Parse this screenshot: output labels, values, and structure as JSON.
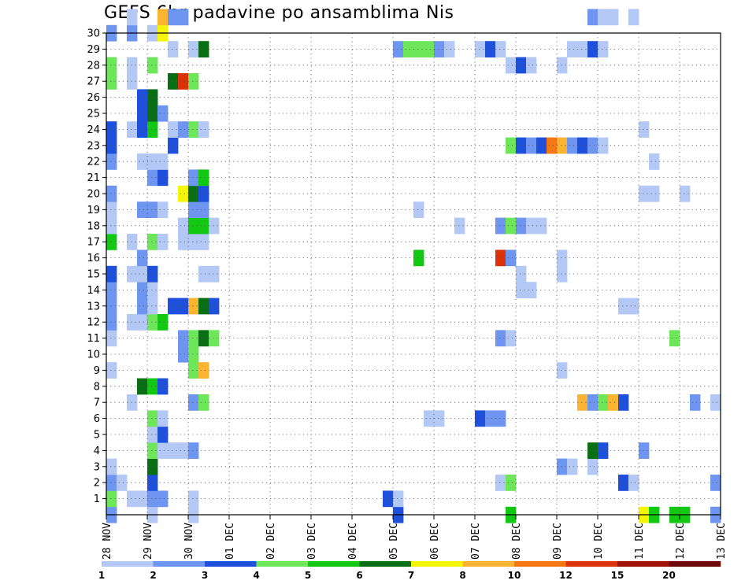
{
  "chart_data": {
    "type": "heatmap",
    "title": "GEFS 6hr padavine po ansamblima Nis",
    "xlabel": "",
    "ylabel": "",
    "x_tick_labels": [
      "28 NOV",
      "29 NOV",
      "30 NOV",
      "01 DEC",
      "02 DEC",
      "03 DEC",
      "04 DEC",
      "05 DEC",
      "06 DEC",
      "07 DEC",
      "08 DEC",
      "09 DEC",
      "10 DEC",
      "11 DEC",
      "12 DEC",
      "13 DEC"
    ],
    "x_steps_per_day": 4,
    "x_range_steps": [
      0,
      60
    ],
    "y_range_members": [
      0,
      30
    ],
    "y_tick_labels": [
      "1",
      "2",
      "3",
      "4",
      "5",
      "6",
      "7",
      "8",
      "9",
      "10",
      "11",
      "12",
      "13",
      "14",
      "15",
      "16",
      "17",
      "18",
      "19",
      "20",
      "21",
      "22",
      "23",
      "24",
      "25",
      "26",
      "27",
      "28",
      "29",
      "30"
    ],
    "grid": true,
    "color_scale": {
      "colors": [
        "#b4c8f5",
        "#6e96f0",
        "#1e50dc",
        "#6ee65a",
        "#12c812",
        "#0a6e14",
        "#f5f50a",
        "#fab432",
        "#f57814",
        "#dc320a",
        "#a0140a",
        "#6e0a0a"
      ],
      "labels": [
        "1",
        "2",
        "3",
        "4",
        "5",
        "6",
        "7",
        "8",
        "10",
        "12",
        "15",
        "20"
      ]
    },
    "cells": [
      [
        0,
        0,
        2
      ],
      [
        4,
        0,
        1
      ],
      [
        8,
        0,
        1
      ],
      [
        28,
        0,
        3
      ],
      [
        39,
        0,
        5
      ],
      [
        52,
        0,
        7
      ],
      [
        53,
        0,
        5
      ],
      [
        55,
        0,
        5
      ],
      [
        56,
        0,
        5
      ],
      [
        59,
        0,
        2
      ],
      [
        0,
        1,
        4
      ],
      [
        2,
        1,
        1
      ],
      [
        3,
        1,
        1
      ],
      [
        4,
        1,
        2
      ],
      [
        5,
        1,
        2
      ],
      [
        8,
        1,
        1
      ],
      [
        27,
        1,
        3
      ],
      [
        28,
        1,
        1
      ],
      [
        0,
        2,
        2
      ],
      [
        1,
        2,
        1
      ],
      [
        4,
        2,
        3
      ],
      [
        38,
        2,
        1
      ],
      [
        39,
        2,
        4
      ],
      [
        50,
        2,
        3
      ],
      [
        51,
        2,
        1
      ],
      [
        59,
        2,
        2
      ],
      [
        0,
        3,
        1
      ],
      [
        4,
        3,
        6
      ],
      [
        44,
        3,
        2
      ],
      [
        45,
        3,
        1
      ],
      [
        47,
        3,
        1
      ],
      [
        4,
        4,
        4
      ],
      [
        5,
        4,
        1
      ],
      [
        6,
        4,
        1
      ],
      [
        7,
        4,
        1
      ],
      [
        8,
        4,
        2
      ],
      [
        47,
        4,
        6
      ],
      [
        48,
        4,
        3
      ],
      [
        52,
        4,
        2
      ],
      [
        4,
        5,
        1
      ],
      [
        5,
        5,
        3
      ],
      [
        4,
        6,
        4
      ],
      [
        5,
        6,
        1
      ],
      [
        31,
        6,
        1
      ],
      [
        32,
        6,
        1
      ],
      [
        36,
        6,
        3
      ],
      [
        37,
        6,
        2
      ],
      [
        38,
        6,
        2
      ],
      [
        2,
        7,
        1
      ],
      [
        8,
        7,
        2
      ],
      [
        9,
        7,
        4
      ],
      [
        46,
        7,
        8
      ],
      [
        47,
        7,
        2
      ],
      [
        48,
        7,
        4
      ],
      [
        49,
        7,
        8
      ],
      [
        50,
        7,
        3
      ],
      [
        57,
        7,
        2
      ],
      [
        59,
        7,
        1
      ],
      [
        3,
        8,
        6
      ],
      [
        4,
        8,
        5
      ],
      [
        5,
        8,
        3
      ],
      [
        0,
        9,
        1
      ],
      [
        8,
        9,
        4
      ],
      [
        9,
        9,
        8
      ],
      [
        44,
        9,
        1
      ],
      [
        7,
        10,
        2
      ],
      [
        8,
        10,
        4
      ],
      [
        0,
        11,
        1
      ],
      [
        7,
        11,
        2
      ],
      [
        8,
        11,
        4
      ],
      [
        9,
        11,
        6
      ],
      [
        10,
        11,
        4
      ],
      [
        38,
        11,
        2
      ],
      [
        39,
        11,
        1
      ],
      [
        55,
        11,
        4
      ],
      [
        0,
        12,
        2
      ],
      [
        2,
        12,
        1
      ],
      [
        3,
        12,
        1
      ],
      [
        4,
        12,
        4
      ],
      [
        5,
        12,
        5
      ],
      [
        0,
        13,
        2
      ],
      [
        3,
        13,
        2
      ],
      [
        4,
        13,
        1
      ],
      [
        6,
        13,
        3
      ],
      [
        7,
        13,
        3
      ],
      [
        8,
        13,
        8
      ],
      [
        9,
        13,
        6
      ],
      [
        10,
        13,
        3
      ],
      [
        50,
        13,
        1
      ],
      [
        51,
        13,
        1
      ],
      [
        0,
        14,
        2
      ],
      [
        3,
        14,
        2
      ],
      [
        4,
        14,
        1
      ],
      [
        40,
        14,
        1
      ],
      [
        41,
        14,
        1
      ],
      [
        0,
        15,
        3
      ],
      [
        2,
        15,
        1
      ],
      [
        3,
        15,
        1
      ],
      [
        4,
        15,
        3
      ],
      [
        9,
        15,
        1
      ],
      [
        10,
        15,
        1
      ],
      [
        40,
        15,
        1
      ],
      [
        44,
        15,
        1
      ],
      [
        3,
        16,
        2
      ],
      [
        30,
        16,
        5
      ],
      [
        38,
        16,
        10
      ],
      [
        39,
        16,
        2
      ],
      [
        44,
        16,
        1
      ],
      [
        0,
        17,
        5
      ],
      [
        2,
        17,
        1
      ],
      [
        4,
        17,
        4
      ],
      [
        5,
        17,
        1
      ],
      [
        7,
        17,
        1
      ],
      [
        8,
        17,
        1
      ],
      [
        9,
        17,
        1
      ],
      [
        0,
        18,
        1
      ],
      [
        7,
        18,
        1
      ],
      [
        8,
        18,
        5
      ],
      [
        9,
        18,
        5
      ],
      [
        10,
        18,
        1
      ],
      [
        34,
        18,
        1
      ],
      [
        38,
        18,
        2
      ],
      [
        39,
        18,
        4
      ],
      [
        40,
        18,
        2
      ],
      [
        41,
        18,
        1
      ],
      [
        42,
        18,
        1
      ],
      [
        0,
        19,
        1
      ],
      [
        3,
        19,
        2
      ],
      [
        4,
        19,
        2
      ],
      [
        5,
        19,
        1
      ],
      [
        8,
        19,
        2
      ],
      [
        9,
        19,
        2
      ],
      [
        30,
        19,
        1
      ],
      [
        0,
        20,
        2
      ],
      [
        7,
        20,
        7
      ],
      [
        8,
        20,
        6
      ],
      [
        9,
        20,
        3
      ],
      [
        52,
        20,
        1
      ],
      [
        53,
        20,
        1
      ],
      [
        56,
        20,
        1
      ],
      [
        4,
        21,
        2
      ],
      [
        5,
        21,
        3
      ],
      [
        8,
        21,
        2
      ],
      [
        9,
        21,
        5
      ],
      [
        0,
        22,
        2
      ],
      [
        3,
        22,
        1
      ],
      [
        4,
        22,
        1
      ],
      [
        5,
        22,
        1
      ],
      [
        53,
        22,
        1
      ],
      [
        0,
        23,
        3
      ],
      [
        6,
        23,
        3
      ],
      [
        39,
        23,
        4
      ],
      [
        40,
        23,
        3
      ],
      [
        41,
        23,
        2
      ],
      [
        42,
        23,
        3
      ],
      [
        43,
        23,
        9
      ],
      [
        44,
        23,
        8
      ],
      [
        45,
        23,
        2
      ],
      [
        46,
        23,
        3
      ],
      [
        47,
        23,
        2
      ],
      [
        48,
        23,
        1
      ],
      [
        0,
        24,
        3
      ],
      [
        2,
        24,
        1
      ],
      [
        3,
        24,
        3
      ],
      [
        4,
        24,
        5
      ],
      [
        6,
        24,
        1
      ],
      [
        7,
        24,
        2
      ],
      [
        8,
        24,
        4
      ],
      [
        9,
        24,
        1
      ],
      [
        52,
        24,
        1
      ],
      [
        3,
        25,
        3
      ],
      [
        4,
        25,
        6
      ],
      [
        5,
        25,
        2
      ],
      [
        3,
        26,
        3
      ],
      [
        4,
        26,
        6
      ],
      [
        0,
        27,
        4
      ],
      [
        2,
        27,
        1
      ],
      [
        6,
        27,
        6
      ],
      [
        7,
        27,
        10
      ],
      [
        8,
        27,
        4
      ],
      [
        0,
        28,
        4
      ],
      [
        2,
        28,
        1
      ],
      [
        4,
        28,
        4
      ],
      [
        39,
        28,
        1
      ],
      [
        40,
        28,
        3
      ],
      [
        41,
        28,
        1
      ],
      [
        44,
        28,
        1
      ],
      [
        6,
        29,
        1
      ],
      [
        8,
        29,
        1
      ],
      [
        9,
        29,
        6
      ],
      [
        28,
        29,
        2
      ],
      [
        29,
        29,
        4
      ],
      [
        30,
        29,
        4
      ],
      [
        31,
        29,
        4
      ],
      [
        32,
        29,
        2
      ],
      [
        33,
        29,
        1
      ],
      [
        36,
        29,
        1
      ],
      [
        37,
        29,
        3
      ],
      [
        38,
        29,
        1
      ],
      [
        45,
        29,
        1
      ],
      [
        46,
        29,
        1
      ],
      [
        47,
        29,
        3
      ],
      [
        48,
        29,
        1
      ],
      [
        0,
        30,
        2
      ],
      [
        2,
        30,
        2
      ],
      [
        4,
        30,
        1
      ],
      [
        5,
        30,
        7
      ],
      [
        2,
        31,
        1
      ],
      [
        5,
        31,
        8
      ],
      [
        6,
        31,
        2
      ],
      [
        7,
        31,
        2
      ],
      [
        47,
        31,
        2
      ],
      [
        48,
        31,
        1
      ],
      [
        49,
        31,
        1
      ],
      [
        51,
        31,
        1
      ]
    ]
  }
}
